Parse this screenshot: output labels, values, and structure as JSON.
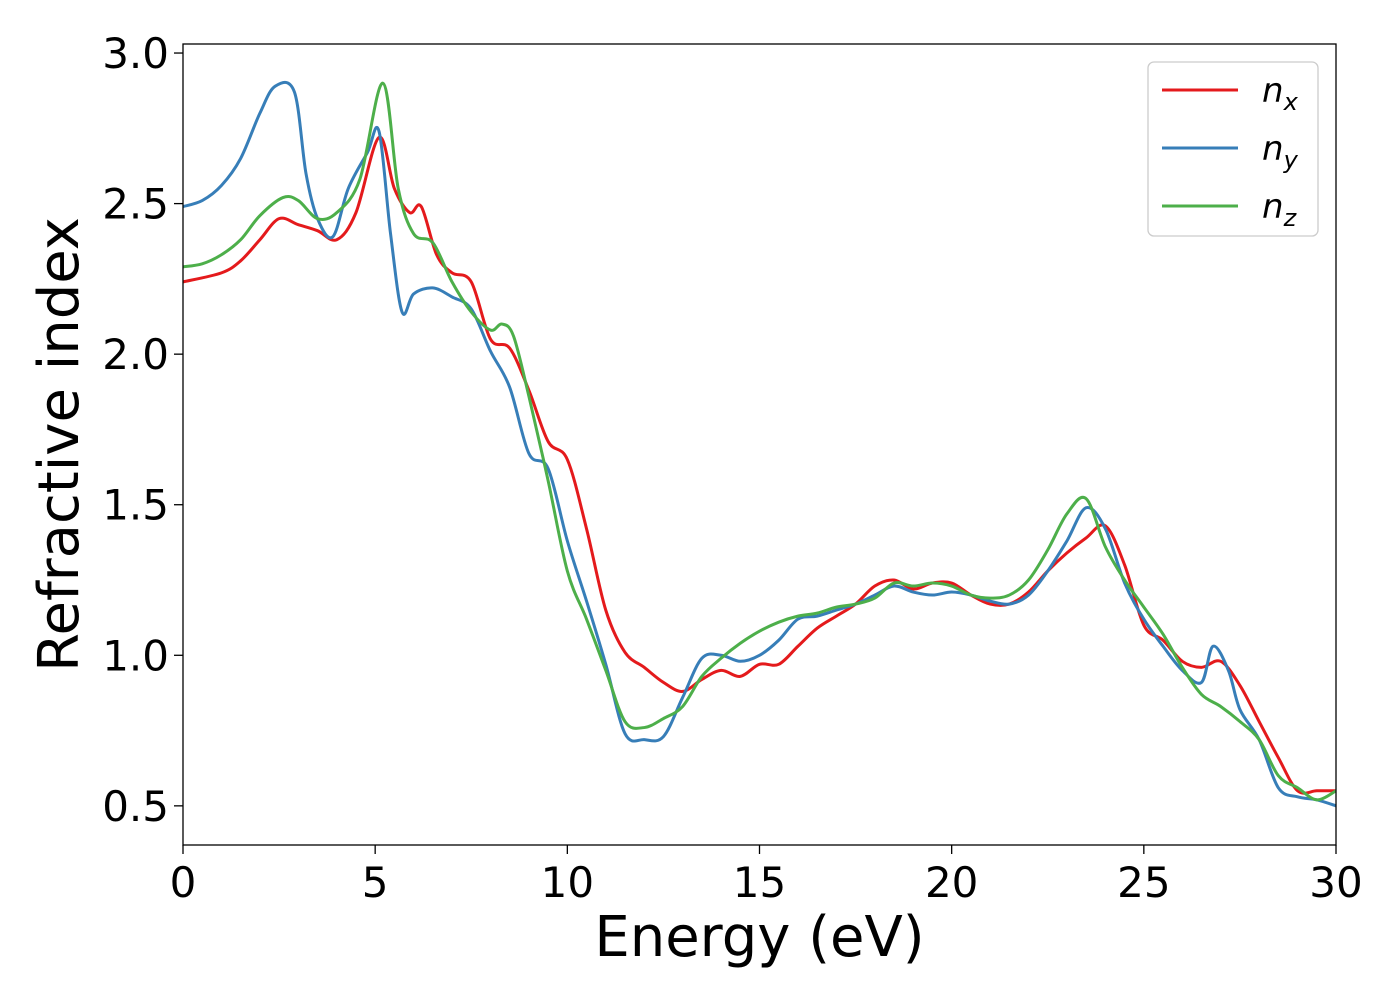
{
  "chart_data": {
    "type": "line",
    "xlabel": "Energy (eV)",
    "ylabel": "Refractive index",
    "xlim": [
      0,
      30
    ],
    "ylim": [
      0.37,
      3.03
    ],
    "xticks": [
      0,
      5,
      10,
      15,
      20,
      25,
      30
    ],
    "yticks": [
      0.5,
      1.0,
      1.5,
      2.0,
      2.5,
      3.0
    ],
    "xtick_labels": [
      "0",
      "5",
      "10",
      "15",
      "20",
      "25",
      "30"
    ],
    "ytick_labels": [
      "0.5",
      "1.0",
      "1.5",
      "2.0",
      "2.5",
      "3.0"
    ],
    "grid": false,
    "legend_position": "top-right",
    "series": [
      {
        "base": "n",
        "sub": "x",
        "color": "#e41a1c",
        "x": [
          0,
          1,
          1.5,
          2,
          2.5,
          3,
          3.5,
          4,
          4.5,
          5.1,
          5.5,
          5.9,
          6.2,
          6.6,
          7,
          7.5,
          8,
          8.5,
          9,
          9.5,
          10,
          10.5,
          11,
          11.5,
          12,
          12.5,
          13,
          13.5,
          14,
          14.5,
          15,
          15.5,
          16,
          16.5,
          17,
          17.5,
          18,
          18.5,
          19,
          19.5,
          20,
          20.5,
          21,
          21.5,
          22,
          22.5,
          23,
          23.5,
          24,
          24.5,
          25,
          25.5,
          26,
          26.5,
          27,
          27.5,
          28,
          28.5,
          29,
          29.5,
          30
        ],
        "y": [
          2.24,
          2.27,
          2.31,
          2.38,
          2.45,
          2.43,
          2.41,
          2.38,
          2.47,
          2.72,
          2.55,
          2.47,
          2.49,
          2.33,
          2.27,
          2.24,
          2.05,
          2.02,
          1.88,
          1.71,
          1.65,
          1.42,
          1.15,
          1.01,
          0.96,
          0.91,
          0.88,
          0.92,
          0.95,
          0.93,
          0.97,
          0.97,
          1.03,
          1.09,
          1.13,
          1.17,
          1.23,
          1.25,
          1.22,
          1.24,
          1.24,
          1.2,
          1.17,
          1.17,
          1.21,
          1.28,
          1.34,
          1.39,
          1.43,
          1.3,
          1.1,
          1.05,
          0.98,
          0.96,
          0.98,
          0.9,
          0.78,
          0.66,
          0.55,
          0.55,
          0.55
        ]
      },
      {
        "base": "n",
        "sub": "y",
        "color": "#377eb8",
        "x": [
          0,
          0.5,
          1,
          1.5,
          2,
          2.4,
          2.9,
          3.2,
          3.5,
          3.9,
          4.3,
          4.8,
          5.1,
          5.4,
          5.7,
          6,
          6.5,
          7,
          7.5,
          8,
          8.5,
          9,
          9.5,
          10,
          10.5,
          11,
          11.5,
          12,
          12.5,
          13,
          13.5,
          14,
          14.5,
          15,
          15.5,
          16,
          16.5,
          17,
          17.5,
          18,
          18.5,
          19,
          19.5,
          20,
          20.5,
          21,
          21.5,
          22,
          22.5,
          23,
          23.5,
          24,
          24.5,
          25,
          25.5,
          26,
          26.5,
          26.8,
          27.2,
          27.5,
          28,
          28.5,
          29,
          29.5,
          30
        ],
        "y": [
          2.49,
          2.51,
          2.56,
          2.65,
          2.8,
          2.89,
          2.87,
          2.6,
          2.45,
          2.39,
          2.55,
          2.67,
          2.74,
          2.4,
          2.14,
          2.2,
          2.22,
          2.19,
          2.15,
          2.01,
          1.89,
          1.67,
          1.62,
          1.38,
          1.18,
          0.97,
          0.74,
          0.72,
          0.73,
          0.86,
          0.99,
          1.0,
          0.98,
          1.0,
          1.05,
          1.12,
          1.13,
          1.15,
          1.17,
          1.2,
          1.23,
          1.21,
          1.2,
          1.21,
          1.2,
          1.18,
          1.17,
          1.2,
          1.28,
          1.38,
          1.49,
          1.42,
          1.24,
          1.12,
          1.03,
          0.95,
          0.91,
          1.03,
          0.95,
          0.82,
          0.72,
          0.56,
          0.53,
          0.52,
          0.5
        ]
      },
      {
        "base": "n",
        "sub": "z",
        "color": "#4daf4a",
        "x": [
          0,
          0.5,
          1,
          1.5,
          2,
          2.6,
          3,
          3.5,
          4,
          4.6,
          5.2,
          5.6,
          6,
          6.5,
          7,
          7.5,
          8,
          8.3,
          8.6,
          9,
          9.5,
          10,
          10.5,
          11,
          11.5,
          12,
          12.5,
          13,
          13.5,
          14,
          14.5,
          15,
          15.5,
          16,
          16.5,
          17,
          17.5,
          18,
          18.5,
          19,
          19.5,
          20,
          20.5,
          21,
          21.5,
          22,
          22.5,
          23,
          23.5,
          24,
          24.5,
          25,
          25.5,
          26,
          26.5,
          27,
          27.5,
          28,
          28.5,
          29,
          29.5,
          30
        ],
        "y": [
          2.29,
          2.3,
          2.33,
          2.38,
          2.46,
          2.52,
          2.51,
          2.45,
          2.47,
          2.58,
          2.9,
          2.55,
          2.4,
          2.37,
          2.24,
          2.14,
          2.08,
          2.1,
          2.06,
          1.86,
          1.58,
          1.28,
          1.12,
          0.95,
          0.78,
          0.76,
          0.79,
          0.83,
          0.93,
          0.99,
          1.04,
          1.08,
          1.11,
          1.13,
          1.14,
          1.16,
          1.17,
          1.19,
          1.24,
          1.23,
          1.24,
          1.23,
          1.2,
          1.19,
          1.2,
          1.25,
          1.35,
          1.47,
          1.52,
          1.36,
          1.25,
          1.16,
          1.07,
          0.96,
          0.87,
          0.83,
          0.78,
          0.72,
          0.6,
          0.56,
          0.52,
          0.55
        ]
      }
    ]
  }
}
